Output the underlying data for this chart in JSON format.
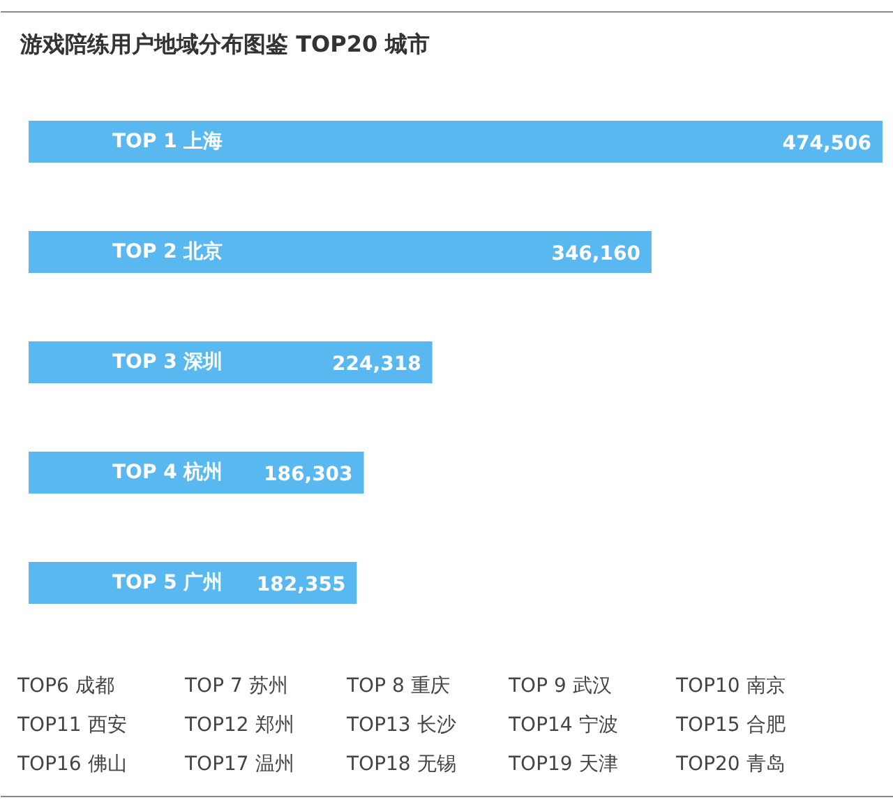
{
  "chart_data": {
    "type": "bar",
    "orientation": "horizontal",
    "title": "游戏陪练用户地域分布图鉴 TOP20 城市",
    "categories": [
      "TOP 1 上海",
      "TOP 2 北京",
      "TOP 3 深圳",
      "TOP 4 杭州",
      "TOP 5 广州"
    ],
    "values": [
      474506,
      346160,
      224318,
      186303,
      182355
    ],
    "color": "#5ab8f0",
    "value_labels": [
      "474,506",
      "346,160",
      "224,318",
      "186,303",
      "182,355"
    ],
    "annotations": [
      "TOP6 成都",
      "TOP 7 苏州",
      "TOP 8 重庆",
      "TOP 9 武汉",
      "TOP10 南京",
      "TOP11 西安",
      "TOP12 郑州",
      "TOP13 长沙",
      "TOP14 宁波",
      "TOP15 合肥",
      "TOP16 佛山",
      "TOP17 温州",
      "TOP18 无锡",
      "TOP19 天津",
      "TOP20 青岛"
    ]
  }
}
